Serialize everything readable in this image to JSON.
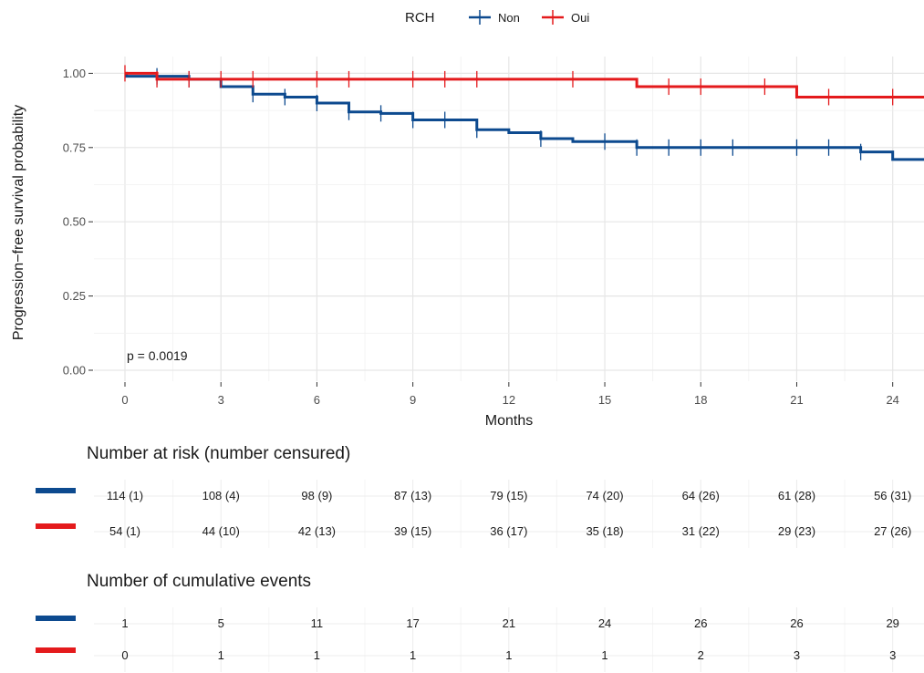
{
  "legend": {
    "title": "RCH",
    "entries": [
      {
        "label": "Non",
        "color": "#0d4a8f"
      },
      {
        "label": "Oui",
        "color": "#e41a1c"
      }
    ]
  },
  "chart_data": {
    "type": "line",
    "subtype": "kaplan-meier-step",
    "xlabel": "Months",
    "ylabel": "Progression−free survival probability",
    "xlim": [
      0,
      25
    ],
    "ylim": [
      0,
      1
    ],
    "xticks": [
      0,
      3,
      6,
      9,
      12,
      15,
      18,
      21,
      24
    ],
    "xtick_labels": [
      "0",
      "3",
      "6",
      "9",
      "12",
      "15",
      "18",
      "21",
      "24"
    ],
    "yticks": [
      0,
      0.25,
      0.5,
      0.75,
      1.0
    ],
    "ytick_labels": [
      "0.00",
      "0.25",
      "0.50",
      "0.75",
      "1.00"
    ],
    "grid": true,
    "annotation": "p = 0.0019",
    "series": [
      {
        "name": "Non",
        "color": "#0d4a8f",
        "steps": [
          [
            0,
            1.0
          ],
          [
            0.05,
            0.99
          ],
          [
            2,
            0.98
          ],
          [
            3,
            0.955
          ],
          [
            4,
            0.93
          ],
          [
            5,
            0.92
          ],
          [
            6,
            0.9
          ],
          [
            7,
            0.87
          ],
          [
            8,
            0.865
          ],
          [
            9,
            0.843
          ],
          [
            11,
            0.81
          ],
          [
            12,
            0.8
          ],
          [
            13,
            0.78
          ],
          [
            14,
            0.77
          ],
          [
            16,
            0.75
          ],
          [
            23,
            0.735
          ],
          [
            24,
            0.71
          ],
          [
            25,
            0.71
          ]
        ],
        "censor_times": [
          1,
          2,
          4,
          5,
          6,
          7,
          8,
          9,
          10,
          11,
          13,
          15,
          16,
          17,
          18,
          19,
          21,
          22,
          23
        ]
      },
      {
        "name": "Oui",
        "color": "#e41a1c",
        "steps": [
          [
            0,
            1.0
          ],
          [
            1,
            0.98
          ],
          [
            16,
            0.955
          ],
          [
            21,
            0.92
          ],
          [
            25,
            0.92
          ]
        ],
        "censor_times": [
          0,
          1,
          2,
          3,
          4,
          6,
          7,
          9,
          10,
          11,
          14,
          17,
          18,
          20,
          22,
          24
        ]
      }
    ]
  },
  "risk_table": {
    "title": "Number at risk (number censured)",
    "colors": [
      "#0d4a8f",
      "#e41a1c"
    ],
    "rows": [
      [
        "114 (1)",
        "108 (4)",
        "98 (9)",
        "87 (13)",
        "79 (15)",
        "74 (20)",
        "64 (26)",
        "61 (28)",
        "56 (31)"
      ],
      [
        "54 (1)",
        "44 (10)",
        "42 (13)",
        "39 (15)",
        "36 (17)",
        "35 (18)",
        "31 (22)",
        "29 (23)",
        "27 (26)"
      ]
    ]
  },
  "events_table": {
    "title": "Number of cumulative events",
    "colors": [
      "#0d4a8f",
      "#e41a1c"
    ],
    "rows": [
      [
        "1",
        "5",
        "11",
        "17",
        "21",
        "24",
        "26",
        "26",
        "29"
      ],
      [
        "0",
        "1",
        "1",
        "1",
        "1",
        "1",
        "2",
        "3",
        "3"
      ]
    ]
  }
}
